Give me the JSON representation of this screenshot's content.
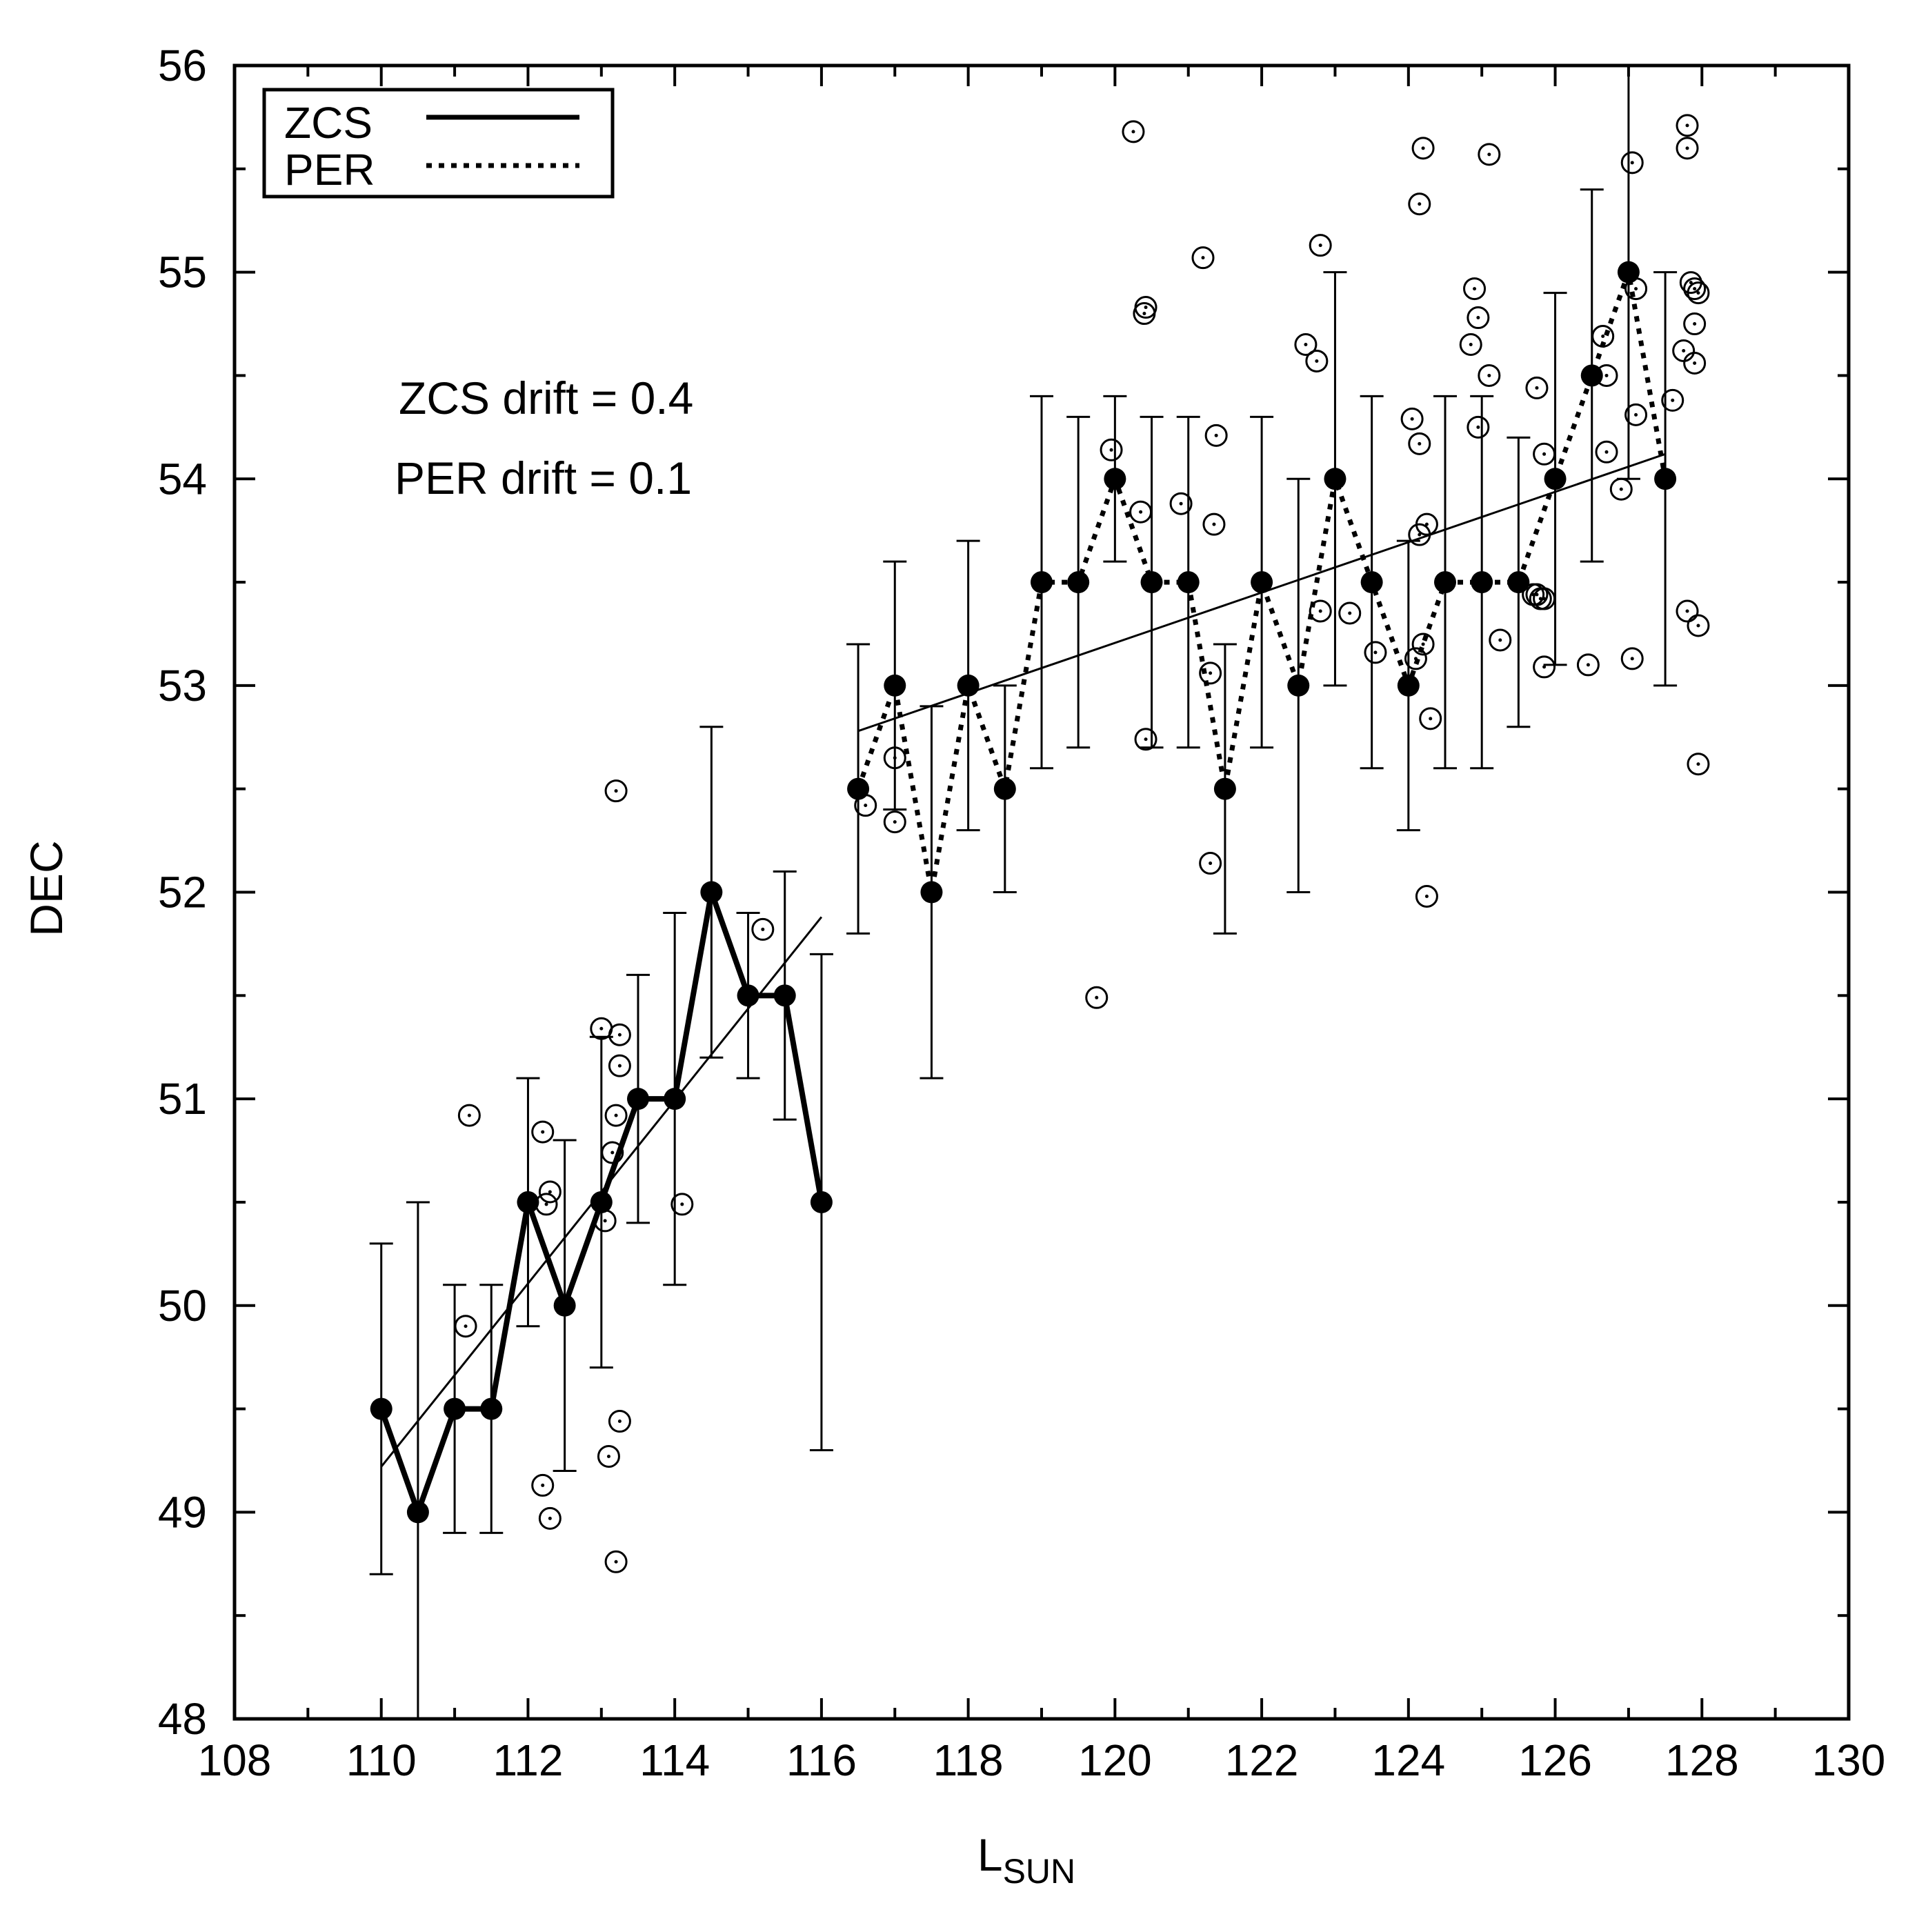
{
  "chart_data": {
    "type": "scatter",
    "xlabel": "L",
    "xlabel_sub": "SUN",
    "ylabel": "DEC",
    "xlim": [
      108,
      130
    ],
    "ylim": [
      48,
      56
    ],
    "x_ticks": [
      108,
      110,
      112,
      114,
      116,
      118,
      120,
      122,
      124,
      126,
      128,
      130
    ],
    "y_ticks": [
      48,
      49,
      50,
      51,
      52,
      53,
      54,
      55,
      56
    ],
    "grid": false,
    "legend_position": "top-left",
    "legend": [
      {
        "label": "ZCS",
        "style": "solid"
      },
      {
        "label": "PER",
        "style": "dotted"
      }
    ],
    "annotations": [
      "ZCS drift = 0.4",
      "PER drift = 0.1"
    ],
    "series": [
      {
        "name": "ZCS",
        "style": "solid",
        "points": [
          {
            "x": 110.0,
            "y": 49.5,
            "lo": 48.7,
            "hi": 50.3
          },
          {
            "x": 110.5,
            "y": 49.0,
            "lo": 48.0,
            "hi": 50.5
          },
          {
            "x": 111.0,
            "y": 49.5,
            "lo": 48.9,
            "hi": 50.1
          },
          {
            "x": 111.5,
            "y": 49.5,
            "lo": 48.9,
            "hi": 50.1
          },
          {
            "x": 112.0,
            "y": 50.5,
            "lo": 49.9,
            "hi": 51.1
          },
          {
            "x": 112.5,
            "y": 50.0,
            "lo": 49.2,
            "hi": 50.8
          },
          {
            "x": 113.0,
            "y": 50.5,
            "lo": 49.7,
            "hi": 51.3
          },
          {
            "x": 113.5,
            "y": 51.0,
            "lo": 50.4,
            "hi": 51.6
          },
          {
            "x": 114.0,
            "y": 51.0,
            "lo": 50.1,
            "hi": 51.9
          },
          {
            "x": 114.5,
            "y": 52.0,
            "lo": 51.2,
            "hi": 52.8
          },
          {
            "x": 115.0,
            "y": 51.5,
            "lo": 51.1,
            "hi": 51.9
          },
          {
            "x": 115.5,
            "y": 51.5,
            "lo": 50.9,
            "hi": 52.1
          },
          {
            "x": 116.0,
            "y": 50.5,
            "lo": 49.3,
            "hi": 51.7
          }
        ]
      },
      {
        "name": "PER",
        "style": "dotted",
        "points": [
          {
            "x": 116.5,
            "y": 52.5,
            "lo": 51.8,
            "hi": 53.2
          },
          {
            "x": 117.0,
            "y": 53.0,
            "lo": 52.4,
            "hi": 53.6
          },
          {
            "x": 117.5,
            "y": 52.0,
            "lo": 51.1,
            "hi": 52.9
          },
          {
            "x": 118.0,
            "y": 53.0,
            "lo": 52.3,
            "hi": 53.7
          },
          {
            "x": 118.5,
            "y": 52.5,
            "lo": 52.0,
            "hi": 53.0
          },
          {
            "x": 119.0,
            "y": 53.5,
            "lo": 52.6,
            "hi": 54.4
          },
          {
            "x": 119.5,
            "y": 53.5,
            "lo": 52.7,
            "hi": 54.3
          },
          {
            "x": 120.0,
            "y": 54.0,
            "lo": 53.6,
            "hi": 54.4
          },
          {
            "x": 120.5,
            "y": 53.5,
            "lo": 52.7,
            "hi": 54.3
          },
          {
            "x": 121.0,
            "y": 53.5,
            "lo": 52.7,
            "hi": 54.3
          },
          {
            "x": 121.5,
            "y": 52.5,
            "lo": 51.8,
            "hi": 53.2
          },
          {
            "x": 122.0,
            "y": 53.5,
            "lo": 52.7,
            "hi": 54.3
          },
          {
            "x": 122.5,
            "y": 53.0,
            "lo": 52.0,
            "hi": 54.0
          },
          {
            "x": 123.0,
            "y": 54.0,
            "lo": 53.0,
            "hi": 55.0
          },
          {
            "x": 123.5,
            "y": 53.5,
            "lo": 52.6,
            "hi": 54.4
          },
          {
            "x": 124.0,
            "y": 53.0,
            "lo": 52.3,
            "hi": 53.7
          },
          {
            "x": 124.5,
            "y": 53.5,
            "lo": 52.6,
            "hi": 54.4
          },
          {
            "x": 125.0,
            "y": 53.5,
            "lo": 52.6,
            "hi": 54.4
          },
          {
            "x": 125.5,
            "y": 53.5,
            "lo": 52.8,
            "hi": 54.2
          },
          {
            "x": 126.0,
            "y": 54.0,
            "lo": 53.1,
            "hi": 54.9
          },
          {
            "x": 126.5,
            "y": 54.5,
            "lo": 53.6,
            "hi": 55.4
          },
          {
            "x": 127.0,
            "y": 55.0,
            "lo": 54.0,
            "hi": 56.0
          },
          {
            "x": 127.5,
            "y": 54.0,
            "lo": 53.0,
            "hi": 55.0
          }
        ]
      }
    ],
    "fit_lines": [
      {
        "x": [
          110.0,
          116.0
        ],
        "y": [
          49.22,
          51.88
        ]
      },
      {
        "x": [
          116.5,
          127.5
        ],
        "y": [
          52.78,
          54.12
        ]
      }
    ],
    "open_points": [
      [
        111.2,
        50.92
      ],
      [
        111.15,
        49.9
      ],
      [
        112.2,
        50.84
      ],
      [
        112.25,
        50.49
      ],
      [
        112.3,
        50.55
      ],
      [
        112.2,
        49.13
      ],
      [
        112.3,
        48.97
      ],
      [
        113.0,
        51.34
      ],
      [
        113.05,
        50.41
      ],
      [
        113.1,
        49.27
      ],
      [
        113.15,
        50.74
      ],
      [
        113.2,
        50.92
      ],
      [
        113.25,
        51.31
      ],
      [
        113.25,
        51.16
      ],
      [
        113.2,
        52.49
      ],
      [
        113.25,
        49.44
      ],
      [
        113.2,
        48.76
      ],
      [
        114.1,
        50.49
      ],
      [
        115.2,
        51.82
      ],
      [
        116.6,
        52.42
      ],
      [
        117.0,
        52.65
      ],
      [
        117.0,
        52.34
      ],
      [
        119.75,
        51.49
      ],
      [
        119.95,
        54.14
      ],
      [
        120.25,
        55.68
      ],
      [
        120.35,
        53.84
      ],
      [
        120.4,
        54.8
      ],
      [
        120.42,
        54.83
      ],
      [
        120.42,
        52.74
      ],
      [
        120.9,
        53.88
      ],
      [
        121.2,
        55.07
      ],
      [
        121.3,
        53.06
      ],
      [
        121.35,
        53.78
      ],
      [
        121.38,
        54.21
      ],
      [
        121.3,
        52.14
      ],
      [
        122.6,
        54.65
      ],
      [
        122.75,
        54.57
      ],
      [
        122.8,
        55.13
      ],
      [
        122.8,
        53.36
      ],
      [
        123.2,
        53.35
      ],
      [
        123.55,
        53.16
      ],
      [
        124.05,
        54.29
      ],
      [
        124.1,
        53.13
      ],
      [
        124.15,
        54.17
      ],
      [
        124.15,
        53.73
      ],
      [
        124.15,
        55.33
      ],
      [
        124.2,
        55.6
      ],
      [
        124.2,
        53.2
      ],
      [
        124.25,
        53.78
      ],
      [
        124.3,
        52.84
      ],
      [
        124.25,
        51.98
      ],
      [
        124.85,
        54.65
      ],
      [
        124.9,
        54.92
      ],
      [
        124.95,
        54.78
      ],
      [
        124.95,
        54.25
      ],
      [
        125.1,
        54.5
      ],
      [
        125.1,
        55.57
      ],
      [
        125.25,
        53.22
      ],
      [
        125.7,
        53.44
      ],
      [
        125.75,
        53.44
      ],
      [
        125.8,
        53.42
      ],
      [
        125.75,
        54.44
      ],
      [
        125.85,
        53.42
      ],
      [
        125.85,
        54.12
      ],
      [
        125.85,
        53.09
      ],
      [
        126.45,
        53.1
      ],
      [
        126.65,
        54.69
      ],
      [
        126.7,
        54.13
      ],
      [
        126.7,
        54.5
      ],
      [
        126.9,
        53.95
      ],
      [
        127.05,
        55.53
      ],
      [
        127.1,
        54.92
      ],
      [
        127.1,
        54.31
      ],
      [
        127.05,
        53.13
      ],
      [
        127.6,
        54.38
      ],
      [
        127.75,
        54.62
      ],
      [
        127.8,
        55.71
      ],
      [
        127.8,
        55.6
      ],
      [
        127.85,
        54.95
      ],
      [
        127.9,
        54.92
      ],
      [
        127.9,
        54.75
      ],
      [
        127.95,
        54.9
      ],
      [
        127.9,
        54.56
      ],
      [
        127.8,
        53.36
      ],
      [
        127.95,
        53.29
      ],
      [
        127.95,
        52.62
      ]
    ]
  }
}
